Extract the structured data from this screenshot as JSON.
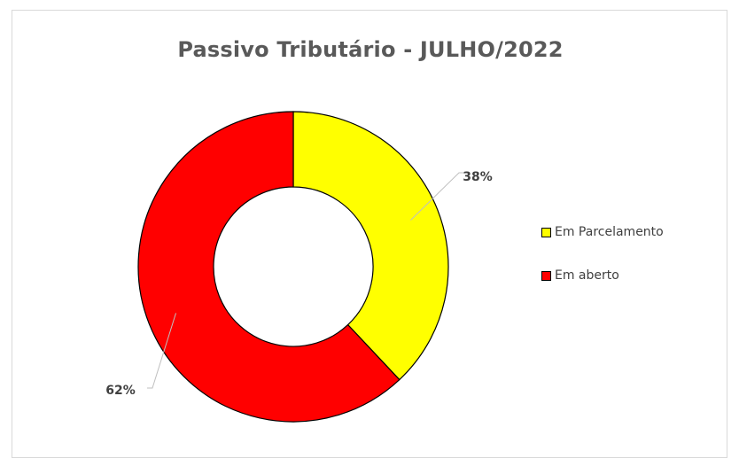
{
  "chart_data": {
    "type": "pie",
    "variant": "doughnut",
    "title": "Passivo Tributário - JULHO/2022",
    "slices": [
      {
        "label": "Em Parcelamento",
        "value": 38,
        "display": "38%",
        "color": "#ffff00"
      },
      {
        "label": "Em aberto",
        "value": 62,
        "display": "62%",
        "color": "#ff0000"
      }
    ],
    "legend_position": "right",
    "data_label_style": "outside with leader lines"
  }
}
